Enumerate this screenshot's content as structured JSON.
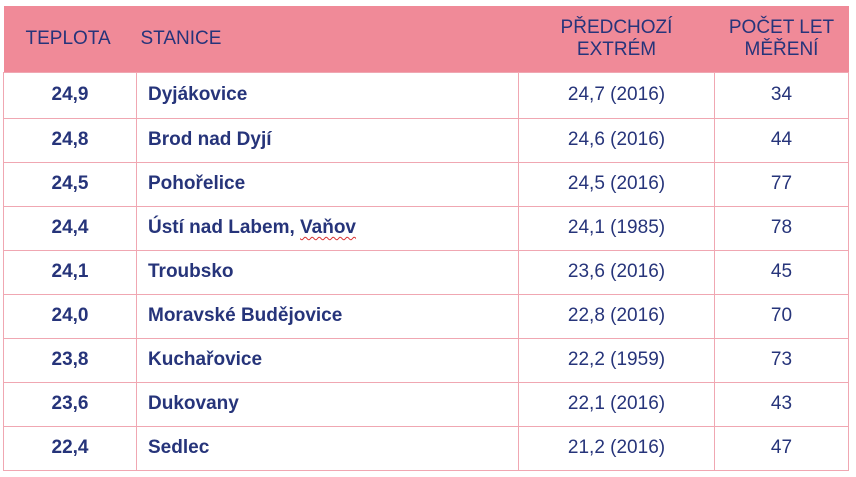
{
  "header": {
    "temp": "TEPLOTA",
    "station": "STANICE",
    "prev_line1": "PŘEDCHOZÍ",
    "prev_line2": "EXTRÉM",
    "years_line1": "POČET LET",
    "years_line2": "MĚŘENÍ"
  },
  "rows": [
    {
      "temp": "24,9",
      "station": "Dyjákovice",
      "prev": "24,7 (2016)",
      "years": "34"
    },
    {
      "temp": "24,8",
      "station": "Brod nad Dyjí",
      "prev": "24,6 (2016)",
      "years": "44"
    },
    {
      "temp": "24,5",
      "station": "Pohořelice",
      "prev": "24,5 (2016)",
      "years": "77"
    },
    {
      "temp": "24,4",
      "station_a": "Ústí nad Labem, ",
      "station_b": "Vaňov",
      "prev": "24,1 (1985)",
      "years": "78"
    },
    {
      "temp": "24,1",
      "station": "Troubsko",
      "prev": "23,6 (2016)",
      "years": "45"
    },
    {
      "temp": "24,0",
      "station": "Moravské Budějovice",
      "prev": "22,8 (2016)",
      "years": "70"
    },
    {
      "temp": "23,8",
      "station": "Kuchařovice",
      "prev": "22,2 (1959)",
      "years": "73"
    },
    {
      "temp": "23,6",
      "station": "Dukovany",
      "prev": "22,1 (2016)",
      "years": "43"
    },
    {
      "temp": "22,4",
      "station": "Sedlec",
      "prev": "21,2 (2016)",
      "years": "47"
    }
  ],
  "colors": {
    "header_bg": "#f08a98",
    "text": "#26347a",
    "grid": "#f0a7b2"
  }
}
